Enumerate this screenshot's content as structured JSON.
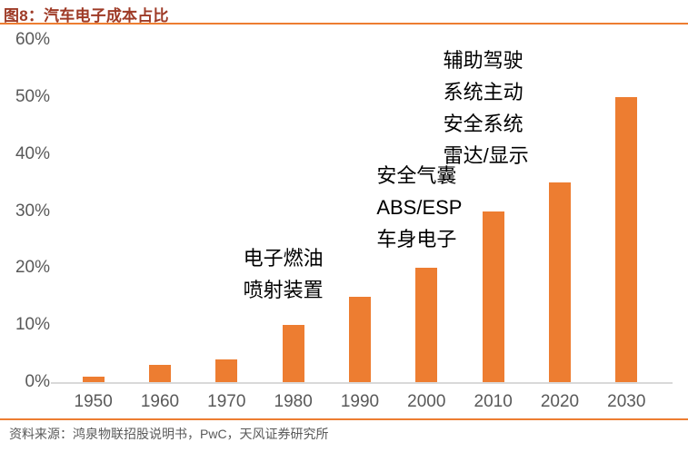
{
  "header": {
    "title": "图8：汽车电子成本占比"
  },
  "footer": {
    "source": "资料来源：鸿泉物联招股说明书，PwC，天风证券研究所"
  },
  "colors": {
    "bar": "#ED7D31",
    "accent_line": "#ED7D31",
    "title_text": "#9E3A26",
    "axis_text": "#595959",
    "axis_line": "#D9D9D9",
    "annotation_text": "#000000",
    "footer_text": "#595959"
  },
  "chart_data": {
    "type": "bar",
    "title": "汽车电子成本占比",
    "categories": [
      "1950",
      "1960",
      "1970",
      "1980",
      "1990",
      "2000",
      "2010",
      "2020",
      "2030"
    ],
    "values": [
      1,
      3,
      4,
      10,
      15,
      20,
      30,
      35,
      50
    ],
    "unit": "%",
    "xlabel": "",
    "ylabel": "",
    "ylim": [
      0,
      60
    ],
    "ytick_step": 10,
    "ytick_labels": [
      "0%",
      "10%",
      "20%",
      "30%",
      "40%",
      "50%",
      "60%"
    ],
    "grid": false,
    "legend": null,
    "annotations": [
      {
        "lines": [
          "电子燃油",
          "喷射装置"
        ],
        "anchor_category": "1980"
      },
      {
        "lines": [
          "安全气囊",
          "ABS/ESP",
          "车身电子"
        ],
        "anchor_category": "2000"
      },
      {
        "lines": [
          "辅助驾驶",
          "系统主动",
          "安全系统",
          "雷达/显示"
        ],
        "anchor_category": "2010"
      }
    ]
  }
}
